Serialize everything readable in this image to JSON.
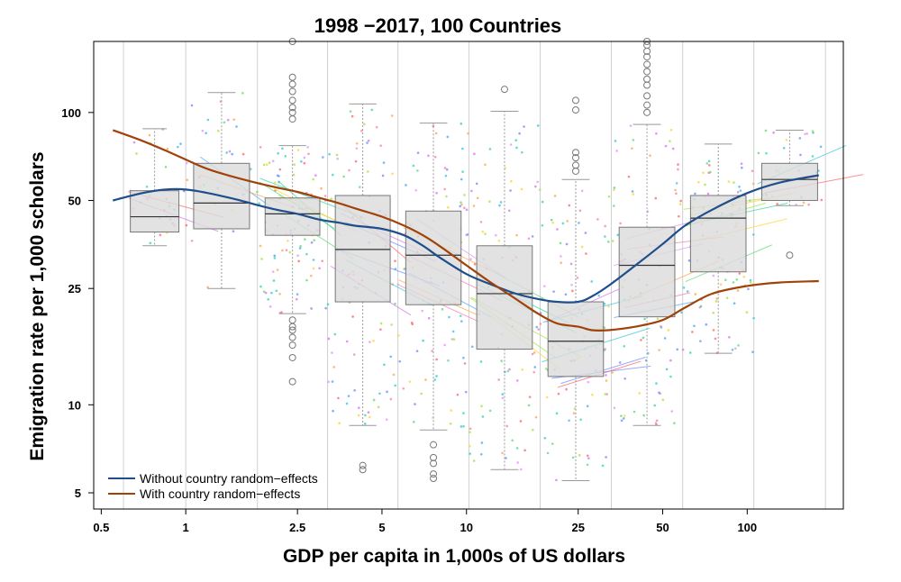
{
  "chart_data": {
    "type": "box",
    "title": "1998 −2017, 100 Countries",
    "xlabel": "GDP per capita in 1,000s of US dollars",
    "ylabel": "Emigration rate per 1,000 scholars",
    "x_scale": "log",
    "y_scale": "log",
    "x_range": [
      0.47,
      220
    ],
    "y_range": [
      4.4,
      175
    ],
    "x_ticks": [
      {
        "value": 0.5,
        "label": "0.5"
      },
      {
        "value": 1,
        "label": "1"
      },
      {
        "value": 2.5,
        "label": "2.5"
      },
      {
        "value": 5,
        "label": "5"
      },
      {
        "value": 10,
        "label": "10"
      },
      {
        "value": 25,
        "label": "25"
      },
      {
        "value": 50,
        "label": "50"
      },
      {
        "value": 100,
        "label": "100"
      }
    ],
    "y_ticks": [
      {
        "value": 5,
        "label": "5"
      },
      {
        "value": 10,
        "label": "10"
      },
      {
        "value": 25,
        "label": "25"
      },
      {
        "value": 50,
        "label": "50"
      },
      {
        "value": 100,
        "label": "100"
      }
    ],
    "bin_edges": [
      0.6,
      1.0,
      1.8,
      3.2,
      5.7,
      10.2,
      18.3,
      32.8,
      58.9,
      105.6,
      190
    ],
    "boxes": [
      {
        "low": 0.6,
        "high": 1.0,
        "min": 35,
        "q1": 39,
        "median": 44,
        "q3": 54,
        "max": 88,
        "outliers": []
      },
      {
        "low": 1.0,
        "high": 1.8,
        "min": 25,
        "q1": 40,
        "median": 49,
        "q3": 67,
        "max": 117,
        "outliers": []
      },
      {
        "low": 1.8,
        "high": 3.2,
        "min": 20.5,
        "q1": 38,
        "median": 45,
        "q3": 51,
        "max": 77,
        "outliers": [
          12,
          14.5,
          16,
          17,
          18,
          18.5,
          19.5,
          95,
          100,
          104,
          110,
          118,
          125,
          132,
          175
        ]
      },
      {
        "low": 3.2,
        "high": 5.7,
        "min": 8.5,
        "q1": 22.5,
        "median": 34,
        "q3": 52,
        "max": 107,
        "outliers": [
          6,
          6.2
        ]
      },
      {
        "low": 5.7,
        "high": 10.2,
        "min": 8.2,
        "q1": 22,
        "median": 32.5,
        "q3": 46,
        "max": 92,
        "outliers": [
          5.6,
          5.8,
          6.3,
          6.6,
          7.3
        ]
      },
      {
        "low": 10.2,
        "high": 18.3,
        "min": 6,
        "q1": 15.5,
        "median": 24,
        "q3": 35,
        "max": 101,
        "outliers": [
          120
        ]
      },
      {
        "low": 18.3,
        "high": 32.8,
        "min": 5.5,
        "q1": 12.5,
        "median": 16.5,
        "q3": 22.5,
        "max": 59,
        "outliers": [
          63,
          66,
          70,
          73,
          102,
          110
        ]
      },
      {
        "low": 32.8,
        "high": 58.9,
        "min": 8.5,
        "q1": 20,
        "median": 30,
        "q3": 40.5,
        "max": 91,
        "outliers": [
          100,
          106,
          114,
          124,
          130,
          138,
          146,
          155,
          162,
          170,
          175
        ]
      },
      {
        "low": 58.9,
        "high": 105.6,
        "min": 15,
        "q1": 28.5,
        "median": 43.5,
        "q3": 52,
        "max": 78,
        "outliers": []
      },
      {
        "low": 105.6,
        "high": 190,
        "min": 48,
        "q1": 50,
        "median": 59,
        "q3": 67,
        "max": 87,
        "outliers": [
          32.5
        ]
      }
    ],
    "series": [
      {
        "name": "Without country random−effects",
        "color": "#1f4e8c",
        "x": [
          0.55,
          0.7,
          0.85,
          1.0,
          1.2,
          1.5,
          2.0,
          2.5,
          3.0,
          3.5,
          4.0,
          5.0,
          6.0,
          7.0,
          8.0,
          10.0,
          12.0,
          15.0,
          18.0,
          21.0,
          25.0,
          28.0,
          32.0,
          40.0,
          50.0,
          60.0,
          75.0,
          100.0,
          130.0,
          180.0
        ],
        "y": [
          50,
          53,
          54.5,
          54.5,
          53,
          50.5,
          47,
          45,
          43,
          42,
          41,
          40,
          38,
          35,
          32,
          28,
          26,
          24,
          23,
          22.5,
          22.5,
          23.5,
          25.5,
          30,
          35.5,
          41,
          46.5,
          53,
          57.5,
          61
        ]
      },
      {
        "name": "With country random−effects",
        "color": "#a0420a",
        "x": [
          0.55,
          0.7,
          0.85,
          1.0,
          1.2,
          1.5,
          2.0,
          2.5,
          3.0,
          3.5,
          4.0,
          5.0,
          6.0,
          7.0,
          8.0,
          10.0,
          12.0,
          15.0,
          18.0,
          21.0,
          25.0,
          28.0,
          32.0,
          40.0,
          50.0,
          60.0,
          75.0,
          100.0,
          130.0,
          180.0
        ],
        "y": [
          87,
          80,
          74,
          69,
          64,
          60,
          56,
          53.5,
          51,
          49,
          47,
          44,
          41,
          38,
          35,
          30,
          26.5,
          23,
          20.5,
          19,
          18.5,
          18,
          18,
          18.5,
          19.5,
          21.5,
          24,
          25.5,
          26.2,
          26.5
        ]
      }
    ],
    "legend": {
      "position": "bottom-left"
    },
    "grid": "vertical lines at bin edges",
    "box_fill": "#dcdcdc",
    "axis_color": "#000000"
  }
}
